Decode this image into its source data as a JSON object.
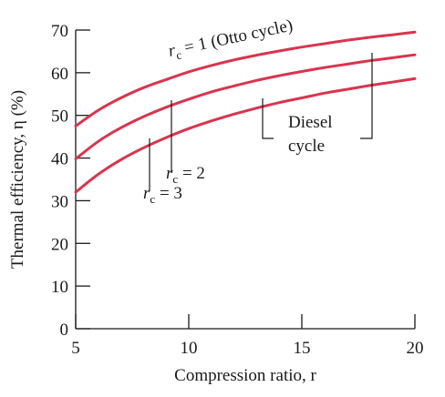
{
  "chart_data": {
    "type": "line",
    "xlabel": "Compression ratio, r",
    "ylabel": "Thermal efficiency, η (%)",
    "xlim": [
      5,
      20
    ],
    "ylim": [
      0,
      70
    ],
    "x_ticks": [
      5,
      10,
      15,
      20
    ],
    "y_ticks": [
      0,
      10,
      20,
      30,
      40,
      50,
      60,
      70
    ],
    "grid": false,
    "series": [
      {
        "key": "rc1",
        "x": [
          5,
          6,
          7,
          8,
          9,
          10,
          11,
          12,
          13,
          14,
          15,
          16,
          17,
          18,
          19,
          20
        ],
        "values": [
          47.5,
          51.2,
          54.1,
          56.5,
          58.4,
          60.2,
          61.7,
          63.0,
          64.1,
          65.1,
          66.0,
          66.8,
          67.6,
          68.3,
          68.9,
          69.5
        ]
      },
      {
        "key": "rc2",
        "x": [
          5,
          6,
          7,
          8,
          9,
          10,
          11,
          12,
          13,
          14,
          15,
          16,
          17,
          18,
          19,
          20
        ],
        "values": [
          39.8,
          43.9,
          47.1,
          49.7,
          51.9,
          53.8,
          55.5,
          56.9,
          58.2,
          59.3,
          60.3,
          61.2,
          62.0,
          62.8,
          63.5,
          64.2
        ]
      },
      {
        "key": "rc3",
        "x": [
          5,
          6,
          7,
          8,
          9,
          10,
          11,
          12,
          13,
          14,
          15,
          16,
          17,
          18,
          19,
          20
        ],
        "values": [
          32.0,
          36.2,
          39.6,
          42.4,
          44.8,
          46.9,
          48.7,
          50.3,
          51.7,
          53.0,
          54.1,
          55.2,
          56.1,
          57.0,
          57.8,
          58.6
        ]
      }
    ],
    "annotations": {
      "otto": {
        "prefix": "r",
        "subscript": "c",
        "suffix": " = 1 (Otto cycle)"
      },
      "rc2": {
        "prefix": "r",
        "subscript": "c",
        "suffix": " = 2"
      },
      "rc3": {
        "prefix": "r",
        "subscript": "c",
        "suffix": " = 3"
      },
      "diesel_line1": "Diesel",
      "diesel_line2": "cycle"
    },
    "colors": {
      "curve": "#d9344e",
      "axis": "#1a1a1a"
    }
  }
}
